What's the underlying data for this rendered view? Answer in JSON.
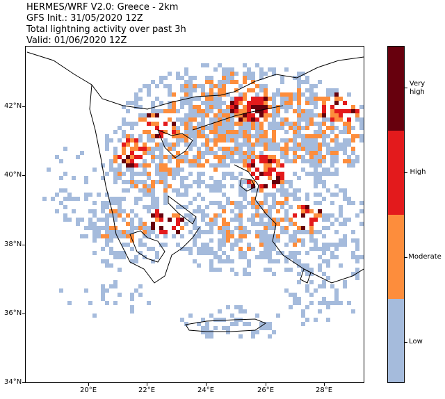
{
  "title": {
    "line1": "HERMES/WRF V2.0: Greece - 2km",
    "line2": "GFS Init.: 31/05/2020 12Z",
    "line3": "Total lightning activity over past 3h",
    "line4": "Valid: 01/06/2020 12Z"
  },
  "map": {
    "y_labels": [
      "42°N",
      "40°N",
      "38°N",
      "36°N",
      "34°N"
    ],
    "x_labels": [
      "20°E",
      "22°E",
      "24°E",
      "26°E",
      "28°E"
    ],
    "lon_range": [
      18.0,
      29.3
    ],
    "lat_range": [
      34.0,
      43.8
    ]
  },
  "colorbar": {
    "levels": [
      {
        "label": "Very high",
        "color": "#67000d"
      },
      {
        "label": "High",
        "color": "#e31a1c"
      },
      {
        "label": "Moderate",
        "color": "#fd8d3c"
      },
      {
        "label": "Low",
        "color": "#a5bbdc"
      }
    ]
  },
  "colors": {
    "low": "#a5bbdc",
    "moderate": "#fd8d3c",
    "high": "#e31a1c",
    "very_high": "#67000d",
    "coastline": "#000000"
  }
}
